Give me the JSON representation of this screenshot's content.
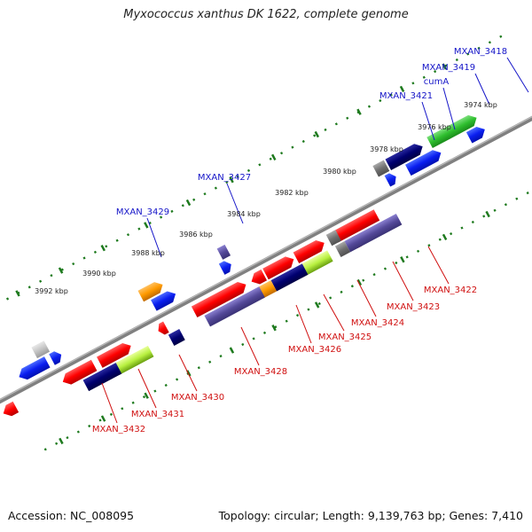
{
  "title": "Myxococcus xanthus DK 1622, complete genome",
  "footer": {
    "accession": "Accession: NC_008095",
    "stats": "Topology: circular; Length: 9,139,763 bp; Genes: 7,410"
  },
  "ruler_labels": [
    "3974 kbp",
    "3976 kbp",
    "3978 kbp",
    "3980 kbp",
    "3982 kbp",
    "3984 kbp",
    "3986 kbp",
    "3988 kbp",
    "3990 kbp",
    "3992 kbp"
  ],
  "top_gene_labels": [
    "MXAN_3418",
    "MXAN_3419",
    "cumA",
    "MXAN_3421",
    "MXAN_3427",
    "MXAN_3429"
  ],
  "bottom_gene_labels": [
    "MXAN_3422",
    "MXAN_3423",
    "MXAN_3424",
    "MXAN_3425",
    "MXAN_3426",
    "MXAN_3428",
    "MXAN_3430",
    "MXAN_3431",
    "MXAN_3432"
  ],
  "colors": {
    "top_label": "#1515c8",
    "bottom_label": "#d01010",
    "backbone": "#808080",
    "tick": "#1e7a1e"
  }
}
